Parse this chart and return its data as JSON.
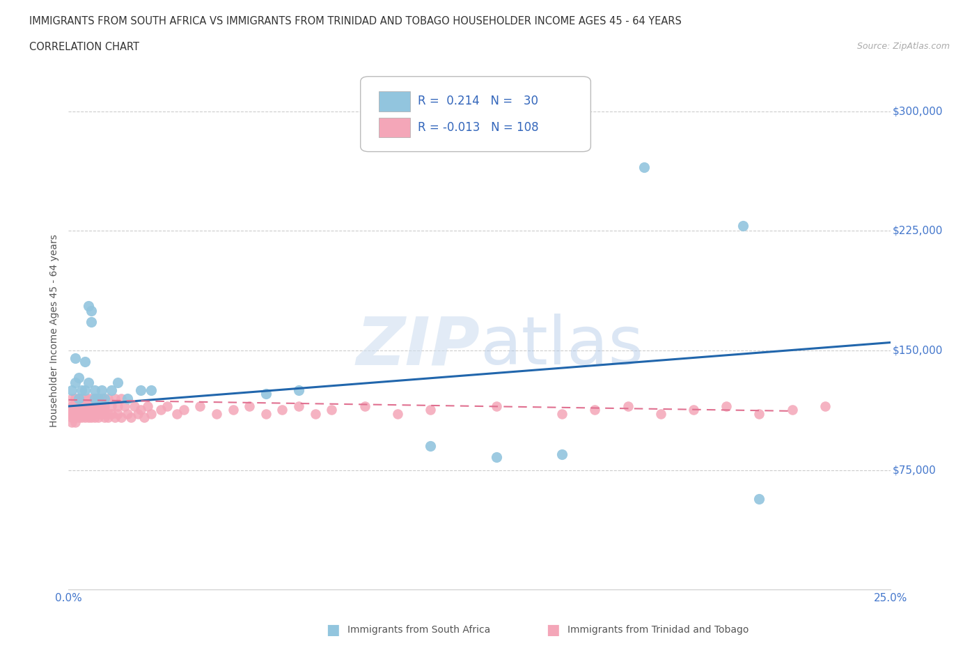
{
  "title_line1": "IMMIGRANTS FROM SOUTH AFRICA VS IMMIGRANTS FROM TRINIDAD AND TOBAGO HOUSEHOLDER INCOME AGES 45 - 64 YEARS",
  "title_line2": "CORRELATION CHART",
  "source_text": "Source: ZipAtlas.com",
  "ylabel": "Householder Income Ages 45 - 64 years",
  "xlim": [
    0.0,
    0.25
  ],
  "ylim": [
    0,
    325000
  ],
  "ytick_positions": [
    75000,
    150000,
    225000,
    300000
  ],
  "ytick_labels": [
    "$75,000",
    "$150,000",
    "$225,000",
    "$300,000"
  ],
  "xticks": [
    0.0,
    0.25
  ],
  "xtick_labels": [
    "0.0%",
    "25.0%"
  ],
  "watermark_zip": "ZIP",
  "watermark_atlas": "atlas",
  "legend_R1": "0.214",
  "legend_N1": "30",
  "legend_R2": "-0.013",
  "legend_N2": "108",
  "color_sa": "#92c5de",
  "color_tt": "#f4a6b8",
  "line_color_sa": "#2166ac",
  "line_color_tt": "#e07090",
  "background_color": "#ffffff",
  "grid_color": "#cccccc",
  "sa_x": [
    0.001,
    0.002,
    0.002,
    0.003,
    0.003,
    0.004,
    0.005,
    0.005,
    0.006,
    0.006,
    0.007,
    0.007,
    0.008,
    0.008,
    0.009,
    0.01,
    0.011,
    0.013,
    0.015,
    0.018,
    0.022,
    0.025,
    0.06,
    0.07,
    0.11,
    0.13,
    0.15,
    0.175,
    0.205,
    0.21
  ],
  "sa_y": [
    125000,
    130000,
    145000,
    120000,
    133000,
    125000,
    125000,
    143000,
    130000,
    178000,
    168000,
    175000,
    120000,
    125000,
    120000,
    125000,
    120000,
    125000,
    130000,
    120000,
    125000,
    125000,
    123000,
    125000,
    90000,
    83000,
    85000,
    265000,
    228000,
    57000
  ],
  "tt_x": [
    0.0005,
    0.001,
    0.001,
    0.001,
    0.001,
    0.001,
    0.001,
    0.002,
    0.002,
    0.002,
    0.002,
    0.002,
    0.002,
    0.002,
    0.002,
    0.003,
    0.003,
    0.003,
    0.003,
    0.003,
    0.003,
    0.003,
    0.004,
    0.004,
    0.004,
    0.004,
    0.004,
    0.004,
    0.004,
    0.005,
    0.005,
    0.005,
    0.005,
    0.005,
    0.005,
    0.005,
    0.006,
    0.006,
    0.006,
    0.006,
    0.006,
    0.006,
    0.007,
    0.007,
    0.007,
    0.007,
    0.007,
    0.008,
    0.008,
    0.008,
    0.008,
    0.008,
    0.009,
    0.009,
    0.009,
    0.009,
    0.01,
    0.01,
    0.01,
    0.011,
    0.011,
    0.011,
    0.012,
    0.012,
    0.012,
    0.013,
    0.013,
    0.014,
    0.014,
    0.015,
    0.015,
    0.016,
    0.016,
    0.017,
    0.018,
    0.019,
    0.02,
    0.021,
    0.022,
    0.023,
    0.024,
    0.025,
    0.028,
    0.03,
    0.033,
    0.035,
    0.04,
    0.045,
    0.05,
    0.055,
    0.06,
    0.065,
    0.07,
    0.075,
    0.08,
    0.09,
    0.1,
    0.11,
    0.13,
    0.15,
    0.16,
    0.17,
    0.18,
    0.19,
    0.2,
    0.21,
    0.22,
    0.23
  ],
  "tt_y": [
    110000,
    120000,
    115000,
    110000,
    105000,
    115000,
    108000,
    115000,
    120000,
    110000,
    105000,
    115000,
    120000,
    108000,
    113000,
    110000,
    115000,
    120000,
    108000,
    112000,
    117000,
    110000,
    115000,
    110000,
    120000,
    108000,
    113000,
    117000,
    110000,
    115000,
    110000,
    120000,
    108000,
    113000,
    118000,
    112000,
    115000,
    110000,
    120000,
    108000,
    113000,
    117000,
    115000,
    110000,
    120000,
    108000,
    113000,
    115000,
    110000,
    120000,
    108000,
    113000,
    115000,
    110000,
    120000,
    108000,
    115000,
    110000,
    120000,
    108000,
    115000,
    113000,
    110000,
    120000,
    108000,
    115000,
    110000,
    120000,
    108000,
    115000,
    110000,
    120000,
    108000,
    115000,
    110000,
    108000,
    115000,
    110000,
    113000,
    108000,
    115000,
    110000,
    113000,
    115000,
    110000,
    113000,
    115000,
    110000,
    113000,
    115000,
    110000,
    113000,
    115000,
    110000,
    113000,
    115000,
    110000,
    113000,
    115000,
    110000,
    113000,
    115000,
    110000,
    113000,
    115000,
    110000,
    113000,
    115000
  ]
}
